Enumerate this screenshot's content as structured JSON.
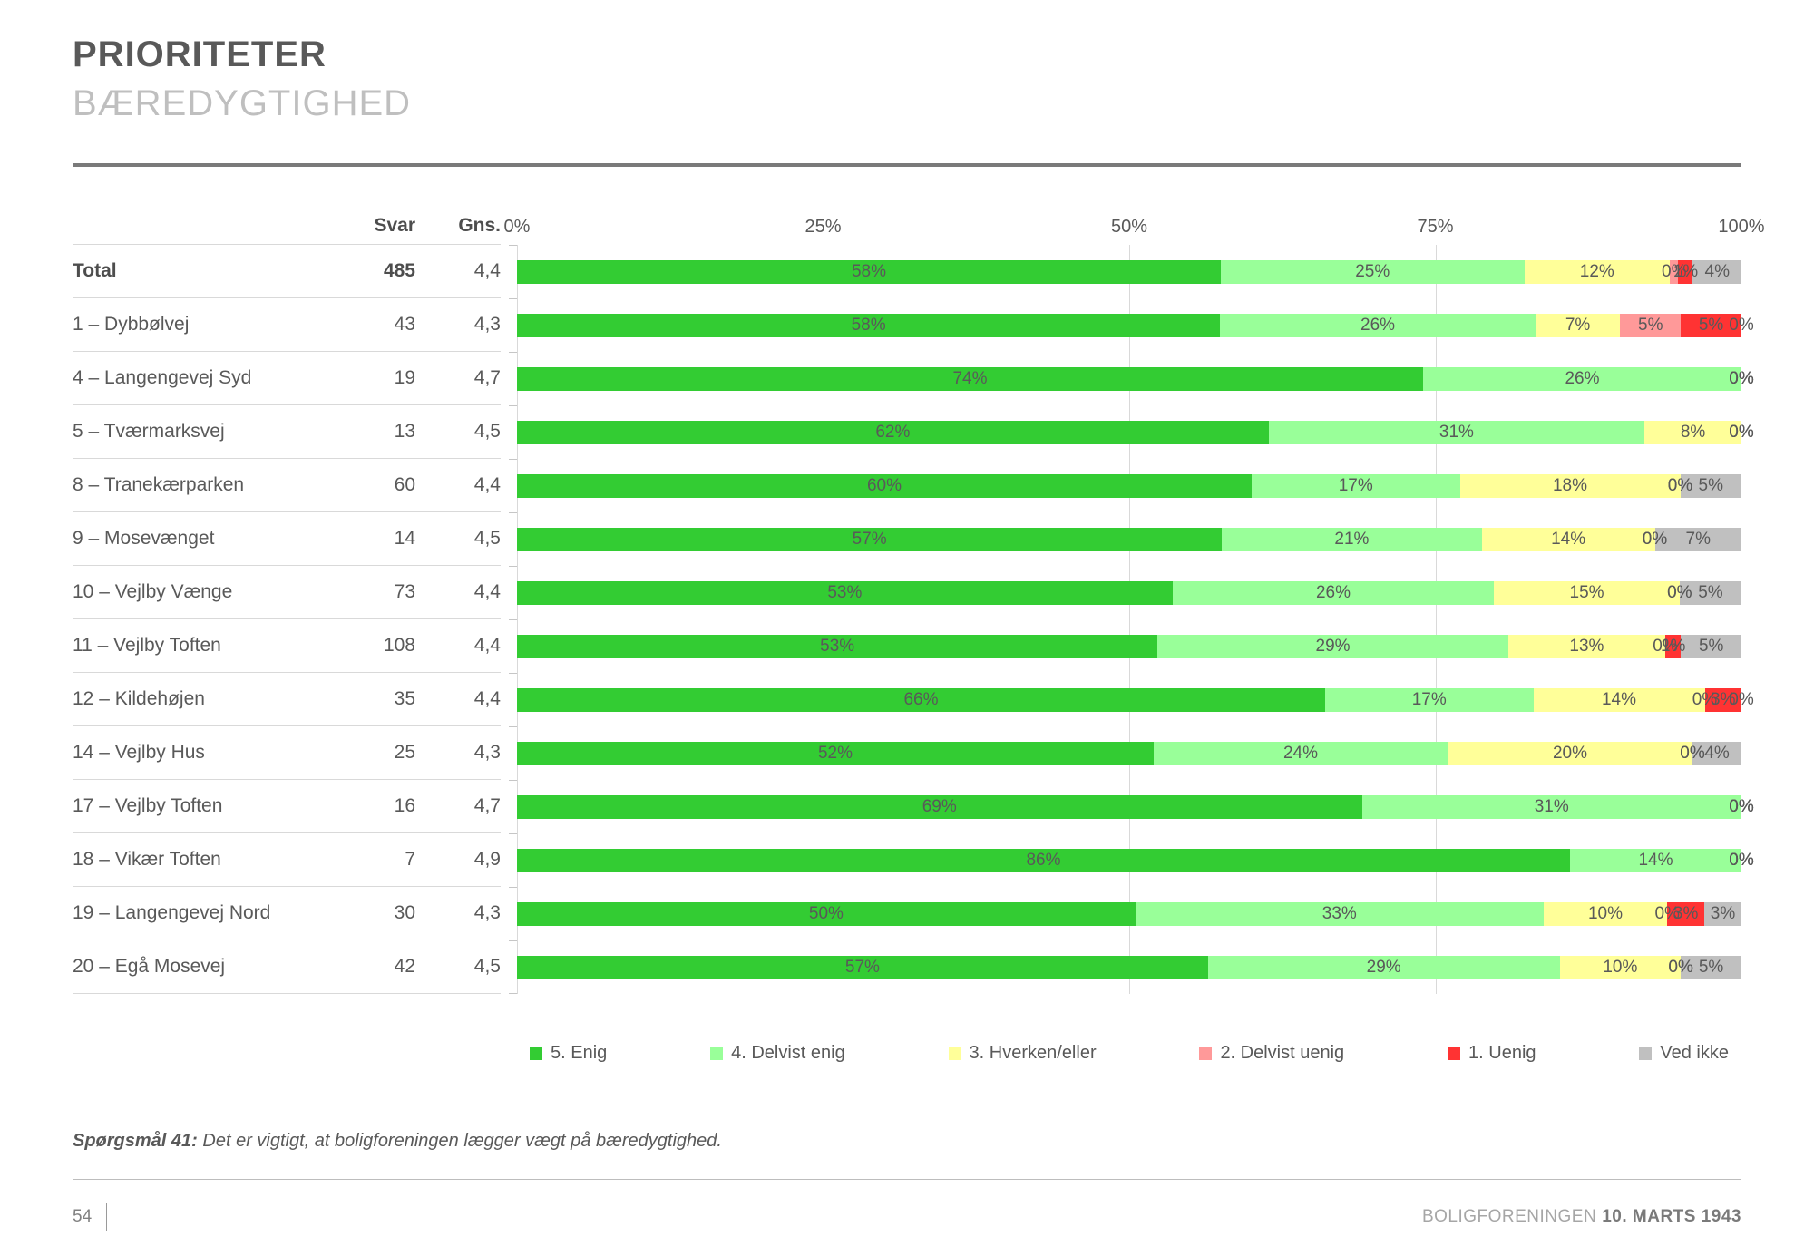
{
  "header": {
    "title": "PRIORITETER",
    "subtitle": "BÆREDYGTIGHED"
  },
  "table": {
    "col_svar": "Svar",
    "col_gns": "Gns."
  },
  "chart_data": {
    "type": "bar",
    "stacked": true,
    "orientation": "horizontal",
    "x_axis": {
      "range": [
        0,
        100
      ],
      "ticks": [
        {
          "label": "0%",
          "pos": 0
        },
        {
          "label": "25%",
          "pos": 25
        },
        {
          "label": "50%",
          "pos": 50
        },
        {
          "label": "75%",
          "pos": 75
        },
        {
          "label": "100%",
          "pos": 100
        }
      ]
    },
    "legend": [
      {
        "label": "5. Enig",
        "color": "#33cc33"
      },
      {
        "label": "4. Delvist enig",
        "color": "#99ff99"
      },
      {
        "label": "3. Hverken/eller",
        "color": "#ffff99"
      },
      {
        "label": "2. Delvist uenig",
        "color": "#ff9999"
      },
      {
        "label": "1. Uenig",
        "color": "#ff3333"
      },
      {
        "label": "Ved ikke",
        "color": "#c0c0c0"
      }
    ],
    "rows": [
      {
        "label": "Total",
        "svar": "485",
        "gns": "4,4",
        "bold": true,
        "segments": [
          {
            "v": 58,
            "label": "58%"
          },
          {
            "v": 25,
            "label": "25%"
          },
          {
            "v": 12,
            "label": "12%"
          },
          {
            "v": 0,
            "w": 0.7,
            "label": "0%"
          },
          {
            "v": 1,
            "w": 1.2,
            "label": "1%"
          },
          {
            "v": 4,
            "label": "4%"
          }
        ]
      },
      {
        "label": "1 – Dybbølvej",
        "svar": "43",
        "gns": "4,3",
        "bold": false,
        "segments": [
          {
            "v": 58,
            "label": "58%"
          },
          {
            "v": 26,
            "label": "26%"
          },
          {
            "v": 7,
            "label": "7%"
          },
          {
            "v": 5,
            "label": "5%"
          },
          {
            "v": 5,
            "label": "5%"
          },
          {
            "v": 0,
            "label": "0%"
          }
        ]
      },
      {
        "label": "4 – Langengevej Syd",
        "svar": "19",
        "gns": "4,7",
        "bold": false,
        "segments": [
          {
            "v": 74,
            "label": "74%"
          },
          {
            "v": 26,
            "label": "26%"
          },
          {
            "v": 0,
            "label": "0%"
          },
          {
            "v": 0,
            "label": "0%"
          },
          {
            "v": 0,
            "label": "0%"
          },
          {
            "v": 0,
            "label": "0%"
          }
        ]
      },
      {
        "label": "5 – Tværmarksvej",
        "svar": "13",
        "gns": "4,5",
        "bold": false,
        "segments": [
          {
            "v": 62,
            "label": "62%"
          },
          {
            "v": 31,
            "label": "31%"
          },
          {
            "v": 8,
            "label": "8%"
          },
          {
            "v": 0,
            "label": "0%"
          },
          {
            "v": 0,
            "label": "0%"
          },
          {
            "v": 0,
            "label": "0%"
          }
        ]
      },
      {
        "label": "8 – Tranekærparken",
        "svar": "60",
        "gns": "4,4",
        "bold": false,
        "segments": [
          {
            "v": 60,
            "label": "60%"
          },
          {
            "v": 17,
            "label": "17%"
          },
          {
            "v": 18,
            "label": "18%"
          },
          {
            "v": 0,
            "label": "0%"
          },
          {
            "v": 0,
            "label": "0%"
          },
          {
            "v": 5,
            "label": "5%"
          }
        ]
      },
      {
        "label": "9 – Mosevænget",
        "svar": "14",
        "gns": "4,5",
        "bold": false,
        "segments": [
          {
            "v": 57,
            "label": "57%"
          },
          {
            "v": 21,
            "label": "21%"
          },
          {
            "v": 14,
            "label": "14%"
          },
          {
            "v": 0,
            "label": "0%"
          },
          {
            "v": 0,
            "label": "0%"
          },
          {
            "v": 7,
            "label": "7%"
          }
        ]
      },
      {
        "label": "10 – Vejlby Vænge",
        "svar": "73",
        "gns": "4,4",
        "bold": false,
        "segments": [
          {
            "v": 53,
            "label": "53%"
          },
          {
            "v": 26,
            "label": "26%"
          },
          {
            "v": 15,
            "label": "15%"
          },
          {
            "v": 0,
            "label": "0%"
          },
          {
            "v": 0,
            "label": "0%"
          },
          {
            "v": 5,
            "label": "5%"
          }
        ]
      },
      {
        "label": "11 – Vejlby Toften",
        "svar": "108",
        "gns": "4,4",
        "bold": false,
        "segments": [
          {
            "v": 53,
            "label": "53%"
          },
          {
            "v": 29,
            "label": "29%"
          },
          {
            "v": 13,
            "label": "13%"
          },
          {
            "v": 0,
            "label": "0%"
          },
          {
            "v": 1,
            "w": 1.3,
            "label": "1%"
          },
          {
            "v": 5,
            "label": "5%"
          }
        ]
      },
      {
        "label": "12 – Kildehøjen",
        "svar": "35",
        "gns": "4,4",
        "bold": false,
        "segments": [
          {
            "v": 66,
            "label": "66%"
          },
          {
            "v": 17,
            "label": "17%"
          },
          {
            "v": 14,
            "label": "14%"
          },
          {
            "v": 0,
            "label": "0%"
          },
          {
            "v": 3,
            "label": "3%"
          },
          {
            "v": 0,
            "label": "0%"
          }
        ]
      },
      {
        "label": "14 – Vejlby Hus",
        "svar": "25",
        "gns": "4,3",
        "bold": false,
        "segments": [
          {
            "v": 52,
            "label": "52%"
          },
          {
            "v": 24,
            "label": "24%"
          },
          {
            "v": 20,
            "label": "20%"
          },
          {
            "v": 0,
            "label": "0%"
          },
          {
            "v": 0,
            "label": "0%"
          },
          {
            "v": 4,
            "label": "4%"
          }
        ]
      },
      {
        "label": "17 – Vejlby Toften",
        "svar": "16",
        "gns": "4,7",
        "bold": false,
        "segments": [
          {
            "v": 69,
            "label": "69%"
          },
          {
            "v": 31,
            "label": "31%"
          },
          {
            "v": 0,
            "label": "0%"
          },
          {
            "v": 0,
            "label": "0%"
          },
          {
            "v": 0,
            "label": "0%"
          },
          {
            "v": 0,
            "label": "0%"
          }
        ]
      },
      {
        "label": "18 – Vikær Toften",
        "svar": "7",
        "gns": "4,9",
        "bold": false,
        "segments": [
          {
            "v": 86,
            "label": "86%"
          },
          {
            "v": 14,
            "label": "14%"
          },
          {
            "v": 0,
            "label": "0%"
          },
          {
            "v": 0,
            "label": "0%"
          },
          {
            "v": 0,
            "label": "0%"
          },
          {
            "v": 0,
            "label": "0%"
          }
        ]
      },
      {
        "label": "19 – Langengevej Nord",
        "svar": "30",
        "gns": "4,3",
        "bold": false,
        "segments": [
          {
            "v": 50,
            "label": "50%"
          },
          {
            "v": 33,
            "label": "33%"
          },
          {
            "v": 10,
            "label": "10%"
          },
          {
            "v": 0,
            "label": "0%"
          },
          {
            "v": 3,
            "label": "3%"
          },
          {
            "v": 3,
            "label": "3%"
          }
        ]
      },
      {
        "label": "20 – Egå Mosevej",
        "svar": "42",
        "gns": "4,5",
        "bold": false,
        "segments": [
          {
            "v": 57,
            "label": "57%"
          },
          {
            "v": 29,
            "label": "29%"
          },
          {
            "v": 10,
            "label": "10%"
          },
          {
            "v": 0,
            "label": "0%"
          },
          {
            "v": 0,
            "label": "0%"
          },
          {
            "v": 5,
            "label": "5%"
          }
        ]
      }
    ]
  },
  "question": {
    "prefix": "Spørgsmål 41:",
    "text": " Det er vigtigt, at boligforeningen lægger vægt på bæredygtighed."
  },
  "footer": {
    "page": "54",
    "org": "BOLIGFORENINGEN",
    "date": "10. MARTS 1943"
  }
}
